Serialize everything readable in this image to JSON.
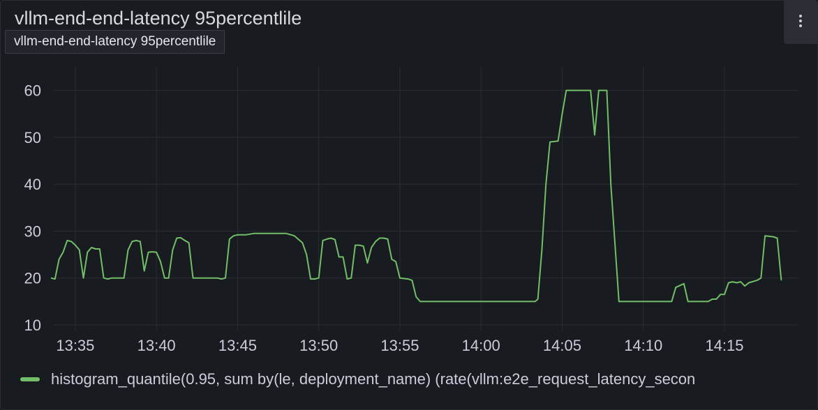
{
  "panel": {
    "title": "vllm-end-end-latency 95percentlile",
    "tooltip": "vllm-end-end-latency 95percentlile",
    "menu_icon": "kebab-vertical-icon"
  },
  "colors": {
    "series": "#73bf69",
    "grid": "#2a2d33",
    "text": "#ccccdc"
  },
  "chart_data": {
    "type": "line",
    "title": "vllm-end-end-latency 95percentlile",
    "xlabel": "",
    "ylabel": "",
    "xlim": [
      "13:33:30",
      "14:19:00"
    ],
    "ylim": [
      10,
      65
    ],
    "yticks": [
      10,
      20,
      30,
      40,
      50,
      60
    ],
    "xticks": [
      "13:35",
      "13:40",
      "13:45",
      "13:50",
      "13:55",
      "14:00",
      "14:05",
      "14:10",
      "14:15"
    ],
    "grid": true,
    "legend_position": "bottom-left",
    "series": [
      {
        "name": "histogram_quantile(0.95, sum by(le, deployment_name) (rate(vllm:e2e_request_latency_secon",
        "color": "#73bf69",
        "points": [
          [
            "13:33:30",
            20
          ],
          [
            "13:33:45",
            19.8
          ],
          [
            "13:34:00",
            24
          ],
          [
            "13:34:15",
            25.5
          ],
          [
            "13:34:30",
            28
          ],
          [
            "13:34:45",
            27.8
          ],
          [
            "13:35:00",
            27
          ],
          [
            "13:35:15",
            26
          ],
          [
            "13:35:30",
            20
          ],
          [
            "13:35:45",
            25.5
          ],
          [
            "13:36:00",
            26.5
          ],
          [
            "13:36:15",
            26.2
          ],
          [
            "13:36:30",
            26.2
          ],
          [
            "13:36:45",
            20
          ],
          [
            "13:37:00",
            19.8
          ],
          [
            "13:37:15",
            20
          ],
          [
            "13:37:30",
            20
          ],
          [
            "13:37:45",
            20
          ],
          [
            "13:38:00",
            20
          ],
          [
            "13:38:15",
            26
          ],
          [
            "13:38:30",
            27.8
          ],
          [
            "13:38:45",
            28
          ],
          [
            "13:39:00",
            27.8
          ],
          [
            "13:39:15",
            21.5
          ],
          [
            "13:39:30",
            25.5
          ],
          [
            "13:39:45",
            25.6
          ],
          [
            "13:40:00",
            25.5
          ],
          [
            "13:40:15",
            23.5
          ],
          [
            "13:40:30",
            20
          ],
          [
            "13:40:45",
            20
          ],
          [
            "13:41:00",
            26
          ],
          [
            "13:41:15",
            28.5
          ],
          [
            "13:41:30",
            28.6
          ],
          [
            "13:41:45",
            28
          ],
          [
            "13:42:00",
            27.5
          ],
          [
            "13:42:15",
            20
          ],
          [
            "13:42:30",
            20
          ],
          [
            "13:43:00",
            20
          ],
          [
            "13:43:30",
            20
          ],
          [
            "13:43:45",
            20
          ],
          [
            "13:44:00",
            19.8
          ],
          [
            "13:44:15",
            20
          ],
          [
            "13:44:30",
            28.3
          ],
          [
            "13:44:45",
            29
          ],
          [
            "13:45:00",
            29.2
          ],
          [
            "13:45:30",
            29.2
          ],
          [
            "13:46:00",
            29.5
          ],
          [
            "13:46:30",
            29.5
          ],
          [
            "13:47:00",
            29.5
          ],
          [
            "13:47:30",
            29.5
          ],
          [
            "13:48:00",
            29.5
          ],
          [
            "13:48:30",
            29
          ],
          [
            "13:49:00",
            27.5
          ],
          [
            "13:49:15",
            25
          ],
          [
            "13:49:30",
            19.8
          ],
          [
            "13:49:45",
            19.8
          ],
          [
            "13:50:00",
            20
          ],
          [
            "13:50:15",
            28
          ],
          [
            "13:50:30",
            28.3
          ],
          [
            "13:50:45",
            28.5
          ],
          [
            "13:51:00",
            28.2
          ],
          [
            "13:51:15",
            24.5
          ],
          [
            "13:51:30",
            24.5
          ],
          [
            "13:51:45",
            19.8
          ],
          [
            "13:52:00",
            20
          ],
          [
            "13:52:15",
            27
          ],
          [
            "13:52:30",
            27
          ],
          [
            "13:52:45",
            26.8
          ],
          [
            "13:53:00",
            23.2
          ],
          [
            "13:53:15",
            26.5
          ],
          [
            "13:53:30",
            27.8
          ],
          [
            "13:53:45",
            28.5
          ],
          [
            "13:54:00",
            28.5
          ],
          [
            "13:54:15",
            28.3
          ],
          [
            "13:54:30",
            24
          ],
          [
            "13:54:45",
            23.5
          ],
          [
            "13:55:00",
            20
          ],
          [
            "13:55:30",
            19.8
          ],
          [
            "13:55:45",
            19.5
          ],
          [
            "13:56:00",
            16
          ],
          [
            "13:56:15",
            15
          ],
          [
            "13:57:00",
            15
          ],
          [
            "13:58:00",
            15
          ],
          [
            "13:59:00",
            15
          ],
          [
            "14:00:00",
            15
          ],
          [
            "14:01:00",
            15
          ],
          [
            "14:02:00",
            15
          ],
          [
            "14:03:00",
            15
          ],
          [
            "14:03:20",
            15
          ],
          [
            "14:03:30",
            15.5
          ],
          [
            "14:03:45",
            26
          ],
          [
            "14:04:00",
            40
          ],
          [
            "14:04:15",
            49
          ],
          [
            "14:04:45",
            49.2
          ],
          [
            "14:05:00",
            55
          ],
          [
            "14:05:15",
            60
          ],
          [
            "14:05:45",
            60
          ],
          [
            "14:06:15",
            60
          ],
          [
            "14:06:45",
            60
          ],
          [
            "14:07:00",
            50.5
          ],
          [
            "14:07:15",
            60
          ],
          [
            "14:07:45",
            60
          ],
          [
            "14:08:00",
            40
          ],
          [
            "14:08:30",
            15
          ],
          [
            "14:09:00",
            15
          ],
          [
            "14:10:00",
            15
          ],
          [
            "14:11:00",
            15
          ],
          [
            "14:11:45",
            15
          ],
          [
            "14:12:00",
            18
          ],
          [
            "14:12:30",
            18.8
          ],
          [
            "14:12:45",
            15
          ],
          [
            "14:13:00",
            15
          ],
          [
            "14:13:30",
            15
          ],
          [
            "14:14:00",
            15
          ],
          [
            "14:14:15",
            15.5
          ],
          [
            "14:14:30",
            15.5
          ],
          [
            "14:14:45",
            16.5
          ],
          [
            "14:15:00",
            16.5
          ],
          [
            "14:15:15",
            19
          ],
          [
            "14:15:30",
            19.2
          ],
          [
            "14:15:45",
            19
          ],
          [
            "14:16:00",
            19.2
          ],
          [
            "14:16:15",
            18.3
          ],
          [
            "14:16:30",
            19
          ],
          [
            "14:17:00",
            19.5
          ],
          [
            "14:17:15",
            20
          ],
          [
            "14:17:30",
            29
          ],
          [
            "14:18:00",
            28.8
          ],
          [
            "14:18:15",
            28.5
          ],
          [
            "14:18:30",
            19.5
          ]
        ]
      }
    ]
  }
}
